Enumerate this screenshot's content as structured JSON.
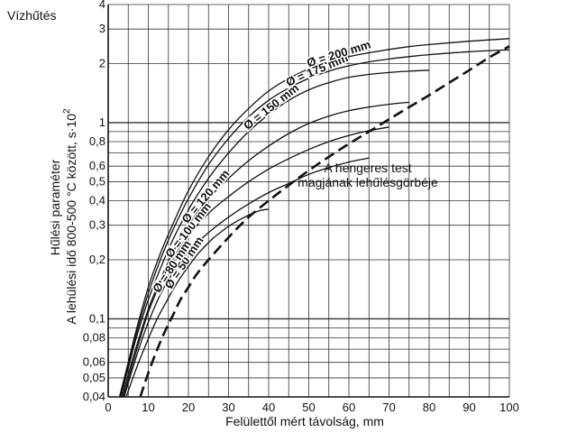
{
  "chart_data": {
    "type": "line",
    "title": "",
    "corner_label": "Vízhűtés",
    "xlabel": "Felülettől mért távolság, mm",
    "ylabel_line1": "Hűlési paraméter",
    "ylabel_line2": "A lehülési idő 800-500 °C között, s·10",
    "ylabel_exponent": "2",
    "x_scale": "linear",
    "y_scale": "log",
    "xlim": [
      0,
      100
    ],
    "ylim": [
      0.04,
      4
    ],
    "grid": true,
    "x_ticks": [
      0,
      10,
      20,
      30,
      40,
      50,
      60,
      70,
      80,
      90,
      100
    ],
    "x_tick_labels": [
      "0",
      "10",
      "20",
      "30",
      "40",
      "50",
      "60",
      "70",
      "80",
      "90",
      "100"
    ],
    "y_ticks": [
      0.04,
      0.05,
      0.06,
      0.08,
      0.1,
      0.2,
      0.3,
      0.4,
      0.5,
      0.6,
      0.8,
      1,
      2,
      3,
      4
    ],
    "y_tick_labels": [
      "0,04",
      "0,05",
      "0,06",
      "0,08",
      "0,1",
      "0,2",
      "0,3",
      "0,4",
      "0,5",
      "0,6",
      "0,8",
      "1",
      "2",
      "3",
      "4"
    ],
    "series": [
      {
        "name": "Ø = 50 mm",
        "style": "solid",
        "x": [
          4.5,
          6,
          8,
          10,
          12,
          14,
          16,
          18,
          20,
          22,
          24,
          26,
          28,
          30,
          32,
          34,
          36,
          38,
          40
        ],
        "y": [
          0.04,
          0.049,
          0.063,
          0.079,
          0.098,
          0.117,
          0.139,
          0.162,
          0.185,
          0.21,
          0.233,
          0.256,
          0.276,
          0.296,
          0.314,
          0.33,
          0.345,
          0.357,
          0.362
        ]
      },
      {
        "name": "Ø = 80 mm",
        "style": "solid",
        "x": [
          4,
          6,
          8,
          10,
          13,
          16,
          20,
          25,
          30,
          35,
          40,
          45,
          50,
          55,
          60,
          65
        ],
        "y": [
          0.04,
          0.055,
          0.074,
          0.096,
          0.133,
          0.17,
          0.22,
          0.275,
          0.33,
          0.385,
          0.44,
          0.49,
          0.545,
          0.59,
          0.63,
          0.66
        ]
      },
      {
        "name": "Ø = 100 mm",
        "style": "solid",
        "x": [
          3.8,
          6,
          8,
          10,
          13,
          16,
          20,
          25,
          30,
          35,
          40,
          45,
          50,
          55,
          60,
          65,
          70
        ],
        "y": [
          0.04,
          0.058,
          0.08,
          0.108,
          0.152,
          0.2,
          0.265,
          0.345,
          0.42,
          0.5,
          0.58,
          0.655,
          0.73,
          0.8,
          0.86,
          0.91,
          0.95
        ]
      },
      {
        "name": "Ø = 120 mm",
        "style": "solid",
        "x": [
          3.5,
          5,
          7,
          10,
          13,
          16,
          20,
          25,
          30,
          35,
          40,
          45,
          50,
          55,
          60,
          65,
          70,
          75
        ],
        "y": [
          0.04,
          0.052,
          0.072,
          0.112,
          0.158,
          0.215,
          0.3,
          0.41,
          0.52,
          0.64,
          0.76,
          0.88,
          0.99,
          1.08,
          1.15,
          1.2,
          1.24,
          1.27
        ]
      },
      {
        "name": "Ø = 150 mm",
        "style": "solid",
        "x": [
          3.2,
          5,
          7,
          10,
          13,
          16,
          20,
          25,
          30,
          35,
          40,
          45,
          50,
          55,
          60,
          65,
          70,
          75,
          80
        ],
        "y": [
          0.04,
          0.056,
          0.08,
          0.125,
          0.18,
          0.25,
          0.36,
          0.52,
          0.7,
          0.9,
          1.1,
          1.3,
          1.47,
          1.6,
          1.7,
          1.76,
          1.8,
          1.83,
          1.85
        ]
      },
      {
        "name": "Ø = 175 mm",
        "style": "solid",
        "x": [
          3.0,
          5,
          7,
          10,
          13,
          16,
          20,
          25,
          30,
          35,
          40,
          45,
          50,
          55,
          60,
          65,
          70,
          75,
          80,
          90,
          100
        ],
        "y": [
          0.04,
          0.058,
          0.084,
          0.135,
          0.2,
          0.28,
          0.41,
          0.61,
          0.83,
          1.07,
          1.3,
          1.5,
          1.68,
          1.83,
          1.95,
          2.04,
          2.11,
          2.17,
          2.22,
          2.3,
          2.35
        ]
      },
      {
        "name": "Ø = 200 mm",
        "style": "solid",
        "x": [
          2.8,
          5,
          7,
          10,
          13,
          16,
          20,
          25,
          30,
          35,
          40,
          45,
          50,
          55,
          60,
          65,
          70,
          75,
          80,
          90,
          100
        ],
        "y": [
          0.04,
          0.06,
          0.088,
          0.145,
          0.215,
          0.3,
          0.45,
          0.67,
          0.92,
          1.18,
          1.45,
          1.68,
          1.88,
          2.04,
          2.17,
          2.27,
          2.36,
          2.44,
          2.5,
          2.6,
          2.68
        ]
      },
      {
        "name": "A hengeres test magjának lehűlésgörbéje",
        "style": "dashed",
        "x": [
          8,
          10,
          12,
          14,
          16,
          18,
          20,
          22,
          25,
          30,
          35,
          40,
          45,
          50,
          55,
          60,
          65,
          70,
          75,
          80,
          85,
          90,
          95,
          100
        ],
        "y": [
          0.04,
          0.053,
          0.068,
          0.085,
          0.103,
          0.125,
          0.145,
          0.168,
          0.2,
          0.26,
          0.33,
          0.4,
          0.48,
          0.57,
          0.67,
          0.78,
          0.9,
          1.04,
          1.2,
          1.38,
          1.6,
          1.85,
          2.15,
          2.45
        ]
      }
    ],
    "curve_labels": [
      {
        "text": "Ø = 50 mm",
        "series": 0
      },
      {
        "text": "Ø = 80 mm",
        "series": 1
      },
      {
        "text": "Ø = 100 mm",
        "series": 2
      },
      {
        "text": "Ø = 120 mm",
        "series": 3
      },
      {
        "text": "Ø = 150 mm",
        "series": 4
      },
      {
        "text": "Ø = 175 mm",
        "series": 5
      },
      {
        "text": "Ø = 200 mm",
        "series": 6
      }
    ],
    "annotation": {
      "line1": "A hengeres test",
      "line2": "magjának lehűlésgörbéje"
    }
  }
}
